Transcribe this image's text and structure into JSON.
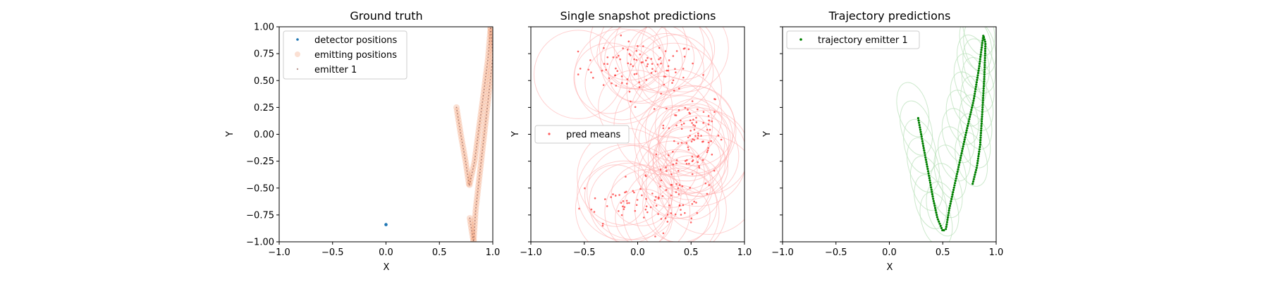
{
  "colors": {
    "detector": "#1f77b4",
    "emitting": "#f4a582",
    "emitter": "#8c564b",
    "pred": "#ff3333",
    "pred_circle": "#ffaaaa",
    "trajectory": "#008000",
    "trajectory_ellipse": "#b8e0b8"
  },
  "chart_data": [
    {
      "type": "scatter",
      "title": "Ground truth",
      "xlabel": "X",
      "ylabel": "Y",
      "xlim": [
        -1.0,
        1.0
      ],
      "ylim": [
        -1.0,
        1.0
      ],
      "xticks": [
        "−1.0",
        "−0.5",
        "0.0",
        "0.5",
        "1.0"
      ],
      "yticks": [
        "1.00",
        "0.75",
        "0.50",
        "0.25",
        "0.00",
        "−0.25",
        "−0.50",
        "−0.75",
        "−1.00"
      ],
      "legend_position": "top-left",
      "legend": [
        "detector positions",
        "emitting positions",
        "emitter 1"
      ],
      "detector_positions": [
        [
          0.0,
          -0.84
        ]
      ],
      "emitter_path": [
        [
          0.66,
          0.25
        ],
        [
          0.7,
          0.0
        ],
        [
          0.745,
          -0.25
        ],
        [
          0.78,
          -0.48
        ],
        [
          0.83,
          -0.25
        ],
        [
          0.87,
          0.05
        ],
        [
          0.91,
          0.35
        ],
        [
          0.955,
          0.7
        ],
        [
          0.98,
          1.0
        ],
        [
          1.0,
          0.73
        ],
        [
          0.96,
          0.35
        ],
        [
          0.92,
          0.0
        ],
        [
          0.88,
          -0.35
        ],
        [
          0.84,
          -0.7
        ],
        [
          0.82,
          -1.0
        ],
        [
          0.795,
          -0.85
        ],
        [
          0.785,
          -0.78
        ]
      ]
    },
    {
      "type": "scatter",
      "title": "Single snapshot predictions",
      "xlabel": "",
      "ylabel": "Y",
      "xlim": [
        -1.0,
        1.0
      ],
      "ylim": [
        -1.0,
        1.0
      ],
      "xticks": [
        "−1.0",
        "−0.5",
        "0.0",
        "0.5",
        "1.0"
      ],
      "legend_position": "center-left",
      "legend": [
        "pred means"
      ],
      "clusters": [
        {
          "cx": 0.02,
          "cy": 0.62,
          "sx": 0.28,
          "sy": 0.12,
          "n": 90
        },
        {
          "cx": 0.5,
          "cy": 0.0,
          "sx": 0.15,
          "sy": 0.22,
          "n": 90
        },
        {
          "cx": -0.1,
          "cy": -0.62,
          "sx": 0.22,
          "sy": 0.1,
          "n": 45
        },
        {
          "cx": 0.35,
          "cy": -0.6,
          "sx": 0.18,
          "sy": 0.15,
          "n": 45
        }
      ]
    },
    {
      "type": "scatter",
      "title": "Trajectory predictions",
      "xlabel": "X",
      "ylabel": "Y",
      "xlim": [
        -1.0,
        1.0
      ],
      "ylim": [
        -1.0,
        1.0
      ],
      "xticks": [
        "−1.0",
        "−0.5",
        "0.0",
        "0.5",
        "1.0"
      ],
      "legend_position": "top-left",
      "legend": [
        "trajectory emitter 1"
      ],
      "trajectory_path": [
        [
          0.27,
          0.15
        ],
        [
          0.32,
          -0.12
        ],
        [
          0.37,
          -0.38
        ],
        [
          0.41,
          -0.6
        ],
        [
          0.45,
          -0.78
        ],
        [
          0.5,
          -0.9
        ],
        [
          0.53,
          -0.88
        ],
        [
          0.56,
          -0.7
        ],
        [
          0.6,
          -0.52
        ],
        [
          0.66,
          -0.25
        ],
        [
          0.72,
          0.02
        ],
        [
          0.79,
          0.32
        ],
        [
          0.84,
          0.62
        ],
        [
          0.87,
          0.85
        ],
        [
          0.88,
          0.92
        ],
        [
          0.9,
          0.85
        ],
        [
          0.89,
          0.55
        ],
        [
          0.87,
          0.2
        ],
        [
          0.85,
          -0.1
        ],
        [
          0.82,
          -0.3
        ],
        [
          0.78,
          -0.46
        ]
      ]
    }
  ]
}
